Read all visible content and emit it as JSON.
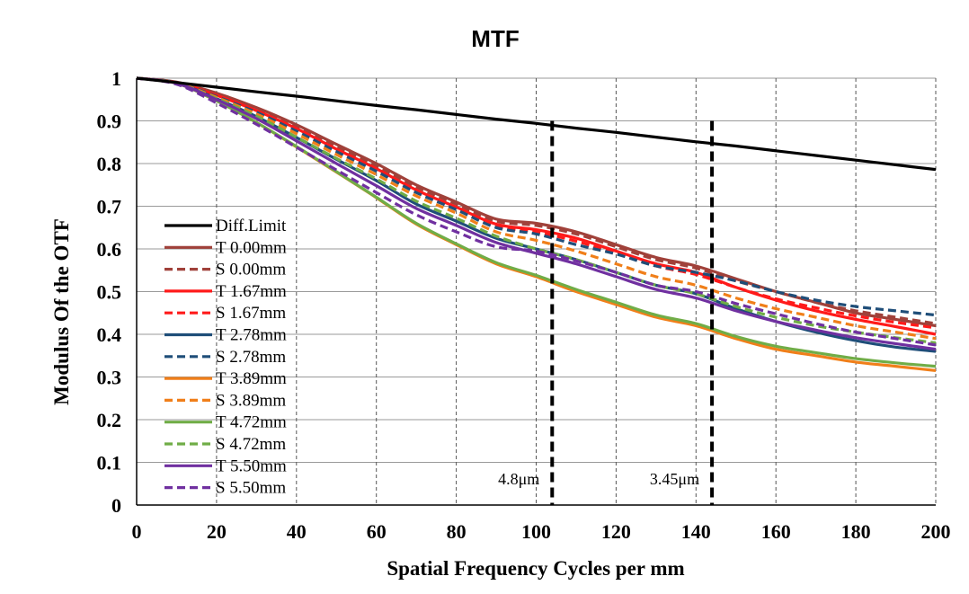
{
  "chart_data": {
    "type": "line",
    "title": "MTF",
    "xlabel": "Spatial Frequency Cycles per mm",
    "ylabel": "Modulus Of  the OTF",
    "xlim": [
      0,
      200
    ],
    "ylim": [
      0,
      1
    ],
    "xticks": [
      "0",
      "20",
      "40",
      "60",
      "80",
      "100",
      "120",
      "140",
      "160",
      "180",
      "200"
    ],
    "yticks": [
      "0",
      "0.1",
      "0.2",
      "0.3",
      "0.4",
      "0.5",
      "0.6",
      "0.7",
      "0.8",
      "0.9",
      "1"
    ],
    "grid": "vertical dashed, horizontal solid",
    "legend_position": "left-bottom inside",
    "x": [
      0,
      10,
      20,
      30,
      40,
      50,
      60,
      70,
      80,
      90,
      100,
      110,
      120,
      130,
      140,
      150,
      160,
      170,
      180,
      190,
      200
    ],
    "series": [
      {
        "name": "Diff.Limit",
        "color": "#000000",
        "dash": false,
        "values": [
          1.0,
          0.99,
          0.979,
          0.968,
          0.958,
          0.947,
          0.936,
          0.926,
          0.915,
          0.904,
          0.894,
          0.883,
          0.873,
          0.862,
          0.851,
          0.841,
          0.83,
          0.819,
          0.808,
          0.797,
          0.786
        ]
      },
      {
        "name": "T 0.00mm",
        "color": "#A0413A",
        "dash": false,
        "values": [
          1.0,
          0.991,
          0.965,
          0.931,
          0.891,
          0.845,
          0.8,
          0.75,
          0.71,
          0.67,
          0.66,
          0.64,
          0.61,
          0.58,
          0.56,
          0.53,
          0.5,
          0.475,
          0.45,
          0.435,
          0.42
        ]
      },
      {
        "name": "S 0.00mm",
        "color": "#A0413A",
        "dash": true,
        "values": [
          1.0,
          0.99,
          0.962,
          0.927,
          0.886,
          0.84,
          0.795,
          0.745,
          0.705,
          0.665,
          0.655,
          0.635,
          0.605,
          0.575,
          0.555,
          0.525,
          0.5,
          0.475,
          0.455,
          0.44,
          0.425
        ]
      },
      {
        "name": "T 1.67mm",
        "color": "#FF1A1A",
        "dash": false,
        "values": [
          1.0,
          0.99,
          0.96,
          0.924,
          0.882,
          0.834,
          0.788,
          0.738,
          0.698,
          0.658,
          0.645,
          0.625,
          0.595,
          0.565,
          0.545,
          0.51,
          0.48,
          0.455,
          0.435,
          0.418,
          0.4
        ]
      },
      {
        "name": "S 1.67mm",
        "color": "#FF1A1A",
        "dash": true,
        "values": [
          1.0,
          0.99,
          0.958,
          0.921,
          0.878,
          0.829,
          0.783,
          0.733,
          0.693,
          0.653,
          0.64,
          0.618,
          0.59,
          0.56,
          0.54,
          0.51,
          0.483,
          0.462,
          0.443,
          0.428,
          0.415
        ]
      },
      {
        "name": "T 2.78mm",
        "color": "#1F4E79",
        "dash": false,
        "values": [
          1.0,
          0.989,
          0.952,
          0.91,
          0.861,
          0.81,
          0.76,
          0.705,
          0.665,
          0.625,
          0.6,
          0.575,
          0.545,
          0.515,
          0.495,
          0.46,
          0.43,
          0.405,
          0.385,
          0.37,
          0.36
        ]
      },
      {
        "name": "S 2.78mm",
        "color": "#1F4E79",
        "dash": true,
        "values": [
          1.0,
          0.99,
          0.957,
          0.92,
          0.876,
          0.828,
          0.782,
          0.732,
          0.692,
          0.65,
          0.635,
          0.61,
          0.588,
          0.56,
          0.545,
          0.525,
          0.5,
          0.48,
          0.465,
          0.455,
          0.445
        ]
      },
      {
        "name": "T 3.89mm",
        "color": "#F07F1A",
        "dash": false,
        "values": [
          1.0,
          0.988,
          0.947,
          0.896,
          0.839,
          0.78,
          0.72,
          0.658,
          0.61,
          0.565,
          0.535,
          0.5,
          0.47,
          0.44,
          0.42,
          0.39,
          0.365,
          0.35,
          0.335,
          0.325,
          0.315
        ]
      },
      {
        "name": "S 3.89mm",
        "color": "#F07F1A",
        "dash": true,
        "values": [
          1.0,
          0.989,
          0.955,
          0.916,
          0.87,
          0.821,
          0.774,
          0.724,
          0.684,
          0.64,
          0.62,
          0.595,
          0.565,
          0.535,
          0.515,
          0.485,
          0.46,
          0.44,
          0.42,
          0.405,
          0.39
        ]
      },
      {
        "name": "T 4.72mm",
        "color": "#70AD47",
        "dash": false,
        "values": [
          1.0,
          0.988,
          0.947,
          0.896,
          0.84,
          0.781,
          0.721,
          0.66,
          0.612,
          0.568,
          0.538,
          0.505,
          0.475,
          0.445,
          0.425,
          0.395,
          0.372,
          0.357,
          0.343,
          0.333,
          0.325
        ]
      },
      {
        "name": "S 4.72mm",
        "color": "#70AD47",
        "dash": true,
        "values": [
          1.0,
          0.988,
          0.952,
          0.911,
          0.862,
          0.812,
          0.764,
          0.712,
          0.672,
          0.63,
          0.6,
          0.575,
          0.545,
          0.515,
          0.495,
          0.465,
          0.44,
          0.42,
          0.405,
          0.392,
          0.38
        ]
      },
      {
        "name": "T 5.50mm",
        "color": "#7030A0",
        "dash": false,
        "values": [
          1.0,
          0.988,
          0.95,
          0.905,
          0.853,
          0.8,
          0.748,
          0.695,
          0.655,
          0.615,
          0.59,
          0.565,
          0.535,
          0.505,
          0.485,
          0.455,
          0.43,
          0.41,
          0.392,
          0.378,
          0.365
        ]
      },
      {
        "name": "S 5.50mm",
        "color": "#7030A0",
        "dash": true,
        "values": [
          1.0,
          0.986,
          0.942,
          0.892,
          0.838,
          0.785,
          0.732,
          0.68,
          0.64,
          0.605,
          0.595,
          0.572,
          0.545,
          0.515,
          0.5,
          0.472,
          0.448,
          0.425,
          0.405,
          0.39,
          0.375
        ]
      }
    ],
    "markers": [
      {
        "x": 104,
        "label": "4.8μm"
      },
      {
        "x": 144,
        "label": "3.45μm"
      }
    ]
  }
}
